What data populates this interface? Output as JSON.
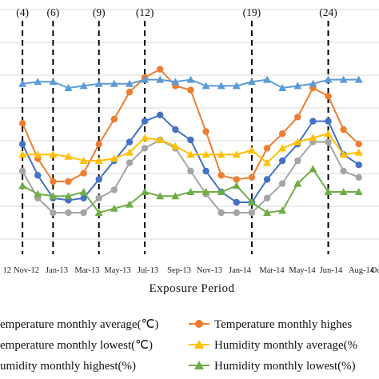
{
  "chart_data": {
    "type": "line",
    "title": "",
    "xlabel": "Exposure  Period",
    "ylabel": "",
    "grid": "horizontal",
    "legend_placement": "bottom",
    "x_tick_labels": [
      "12",
      "Nov-12",
      "Jan-13",
      "Mar-13",
      "May-13",
      "Jul-13",
      "Sep-13",
      "Nov-13",
      "Jan-14",
      "Mar-14",
      "May-14",
      "Jun-14",
      "Aug-14",
      "Oc"
    ],
    "markers": [
      {
        "label": "(4)",
        "month": 1
      },
      {
        "label": "(6)",
        "month": 3
      },
      {
        "label": "(9)",
        "month": 6
      },
      {
        "label": "(12)",
        "month": 9
      },
      {
        "label": "(19)",
        "month": 16
      },
      {
        "label": "(24)",
        "month": 21
      }
    ],
    "series": [
      {
        "name": "Temperature monthly highest(℃)",
        "legend_text": "Temperature monthly highes",
        "color": "#ED7D31",
        "marker": "circle",
        "values": [
          null,
          63,
          46,
          35,
          35,
          39,
          53,
          65,
          78,
          85,
          89,
          81,
          79,
          59,
          38,
          36,
          37,
          51,
          58,
          66,
          80,
          76,
          60,
          53
        ]
      },
      {
        "name": "Temperature monthly average(℃)",
        "legend_text": "emperature monthly average(℃)",
        "color": "#4472C4",
        "marker": "circle",
        "values": [
          null,
          53,
          38,
          27,
          26,
          27,
          36,
          45,
          54,
          64,
          67,
          60,
          55,
          40,
          30,
          25,
          25,
          36,
          45,
          53,
          64,
          64,
          48,
          43
        ]
      },
      {
        "name": "Temperature monthly lowest(℃)",
        "legend_text": "emperature monthly lowest(℃)",
        "color": "#A5A5A5",
        "marker": "circle",
        "values": [
          null,
          40,
          27,
          20,
          20,
          20,
          27,
          31,
          44,
          51,
          55,
          51,
          40,
          29,
          20,
          20,
          20,
          27,
          34,
          45,
          54,
          54,
          40,
          37
        ]
      },
      {
        "name": "Humidity monthly average(%)",
        "legend_text": "Humidity monthly average(%",
        "color": "#FFC000",
        "marker": "triangle",
        "values": [
          null,
          48,
          48,
          48,
          47,
          45,
          45,
          46,
          49,
          56,
          55,
          52,
          48,
          48,
          48,
          48,
          50,
          44,
          51,
          54,
          56,
          58,
          48,
          49
        ]
      },
      {
        "name": "Humidity monthly highest(%)",
        "legend_text": "umidity monthly highest(%)",
        "color": "#5B9BD5",
        "marker": "triangle",
        "values": [
          null,
          82,
          83,
          83,
          80,
          81,
          82,
          82,
          82,
          84,
          84,
          83,
          84,
          81,
          81,
          81,
          83,
          84,
          80,
          81,
          82,
          84,
          84,
          84
        ]
      },
      {
        "name": "Humidity monthly lowest(%)",
        "legend_text": "Humidity monthly lowest(%)",
        "color": "#70AD47",
        "marker": "triangle",
        "values": [
          null,
          33,
          29,
          28,
          28,
          30,
          20,
          22,
          24,
          30,
          28,
          28,
          30,
          30,
          30,
          33,
          25,
          20,
          21,
          34,
          41,
          30,
          30,
          30
        ]
      }
    ]
  },
  "legend": [
    {
      "text": "emperature monthly average(℃)",
      "color": "#4472C4",
      "marker": "circle"
    },
    {
      "text": "Temperature monthly highes",
      "color": "#ED7D31",
      "marker": "circle"
    },
    {
      "text": "emperature monthly lowest(℃)",
      "color": "#A5A5A5",
      "marker": "circle"
    },
    {
      "text": "Humidity monthly average(%",
      "color": "#FFC000",
      "marker": "triangle"
    },
    {
      "text": "umidity monthly highest(%)",
      "color": "#5B9BD5",
      "marker": "triangle"
    },
    {
      "text": "Humidity monthly lowest(%)",
      "color": "#70AD47",
      "marker": "triangle"
    }
  ]
}
